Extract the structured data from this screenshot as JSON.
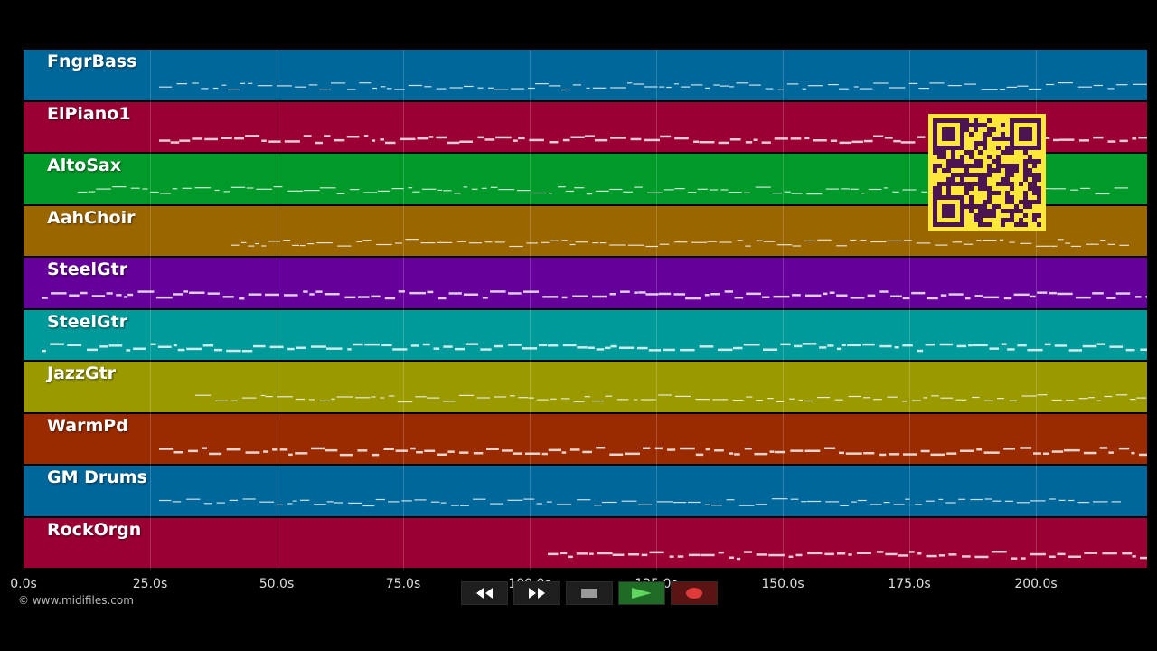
{
  "tracks": [
    {
      "name": "FngrBass",
      "color": "#00679a"
    },
    {
      "name": "ElPiano1",
      "color": "#9a0033"
    },
    {
      "name": "AltoSax",
      "color": "#009a2a"
    },
    {
      "name": "AahChoir",
      "color": "#9a6600"
    },
    {
      "name": "SteelGtr",
      "color": "#66009a"
    },
    {
      "name": "SteelGtr",
      "color": "#009a9a"
    },
    {
      "name": "JazzGtr",
      "color": "#9a9a00"
    },
    {
      "name": "WarmPd",
      "color": "#9a2a00"
    },
    {
      "name": "GM Drums",
      "color": "#00679a"
    },
    {
      "name": "RockOrgn",
      "color": "#9a0033"
    }
  ],
  "timeline": {
    "ticks": [
      "0.0s",
      "25.0s",
      "50.0s",
      "75.0s",
      "100.0s",
      "125.0s",
      "150.0s",
      "175.0s",
      "200.0s"
    ]
  },
  "copyright": "© www.midifiles.com",
  "controls": {
    "rewind_icon": "rewind-icon",
    "forward_icon": "fast-forward-icon",
    "stop_icon": "stop-icon",
    "play_icon": "play-icon",
    "record_icon": "record-icon"
  },
  "qr_code": "qr-code-icon"
}
